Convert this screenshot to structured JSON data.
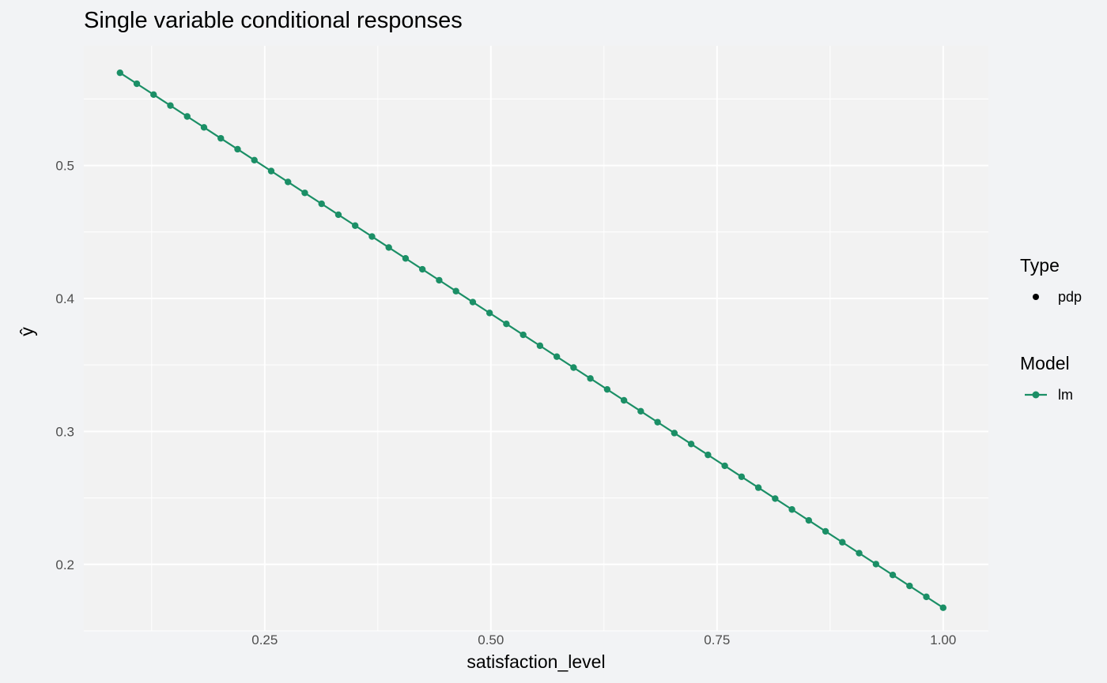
{
  "chart_data": {
    "type": "line",
    "title": "Single variable conditional responses",
    "xlabel": "satisfaction_level",
    "ylabel": "ŷ",
    "xlim": [
      0.05,
      1.05
    ],
    "ylim": [
      0.15,
      0.59
    ],
    "x_ticks": [
      0.25,
      0.5,
      0.75,
      1.0
    ],
    "x_tick_labels": [
      "0.25",
      "0.50",
      "0.75",
      "1.00"
    ],
    "y_ticks": [
      0.2,
      0.3,
      0.4,
      0.5
    ],
    "y_tick_labels": [
      "0.2",
      "0.3",
      "0.4",
      "0.5"
    ],
    "grid": true,
    "legend_position": "right",
    "legend": {
      "type_title": "Type",
      "type_entries": [
        "pdp"
      ],
      "model_title": "Model",
      "model_entries": [
        "lm"
      ]
    },
    "series": [
      {
        "name": "lm",
        "color": "#1b8f66",
        "x_start": 0.09,
        "x_end": 1.0,
        "y_start": 0.5697,
        "y_end": 0.1674,
        "n_points": 50
      }
    ]
  }
}
